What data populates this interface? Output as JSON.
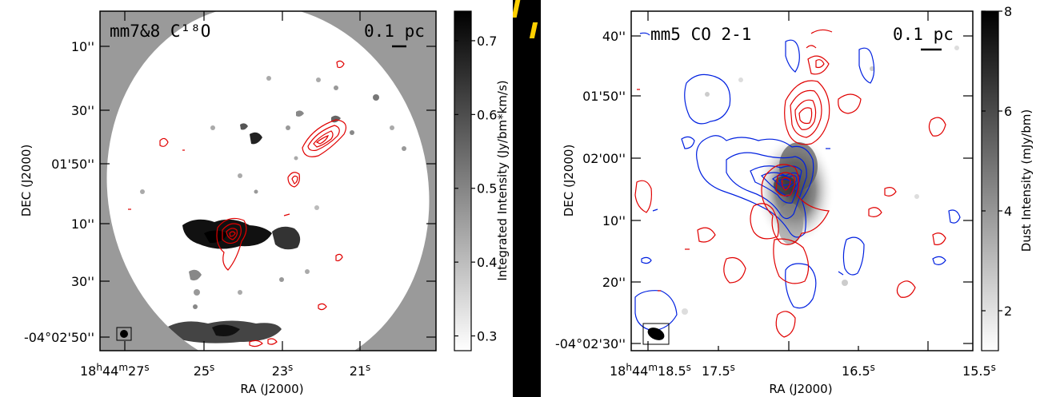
{
  "chart_data": [
    {
      "type": "heatmap",
      "panel_label": "mm7&8 C¹⁸O",
      "scale_label": "0.1 pc",
      "xlabel": "RA (J2000)",
      "ylabel": "DEC (J2000)",
      "x_ticks": [
        {
          "h": "18",
          "m": "44",
          "s": "27",
          "full": true
        },
        {
          "s": "25"
        },
        {
          "s": "23"
        },
        {
          "s": "21"
        }
      ],
      "y_ticks": [
        {
          "label": "10''"
        },
        {
          "label": "30''"
        },
        {
          "label": "01'50''"
        },
        {
          "label": "10''"
        },
        {
          "label": "30''"
        },
        {
          "label": "-04°02'50''",
          "full": true
        }
      ],
      "colorbar": {
        "label": "Integrated Intensity (Jy/bm*km/s)",
        "range": [
          0.28,
          0.74
        ],
        "ticks": [
          "0.7",
          "0.6",
          "0.5",
          "0.4",
          "0.3"
        ],
        "tick_values": [
          0.7,
          0.6,
          0.5,
          0.4,
          0.3
        ],
        "colormap": "white-to-black"
      },
      "contour_colors": [
        "#e00000"
      ]
    },
    {
      "type": "heatmap",
      "panel_label": "mm5 CO 2-1",
      "scale_label": "0.1 pc",
      "xlabel": "RA (J2000)",
      "ylabel": "DEC (J2000)",
      "x_ticks": [
        {
          "h": "18",
          "m": "44",
          "s": "18.5",
          "full": true
        },
        {
          "s": "17.5"
        },
        {
          "s": "16.5"
        },
        {
          "s": "15.5"
        }
      ],
      "y_ticks": [
        {
          "label": "40''"
        },
        {
          "label": "01'50''"
        },
        {
          "label": "02'00''"
        },
        {
          "label": "10''"
        },
        {
          "label": "20''"
        },
        {
          "label": "-04°02'30''",
          "full": true
        }
      ],
      "colorbar": {
        "label": "Dust Intensity (mJy/bm)",
        "range": [
          1.2,
          8.0
        ],
        "ticks": [
          "8",
          "6",
          "4",
          "2"
        ],
        "tick_values": [
          8,
          6,
          4,
          2
        ],
        "colormap": "white-to-black"
      },
      "contour_colors": [
        "#e00000",
        "#0020e0"
      ]
    }
  ]
}
